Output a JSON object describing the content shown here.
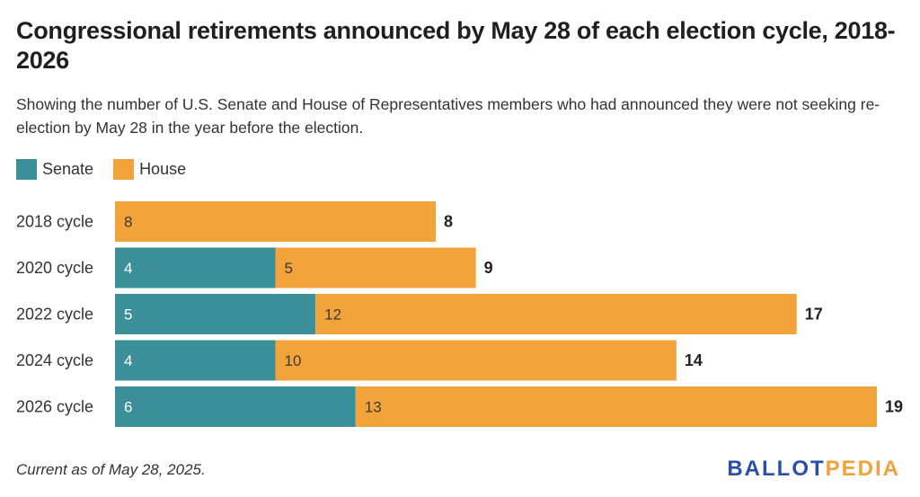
{
  "header": {
    "title": "Congressional retirements announced by May 28 of each election cycle, 2018-2026",
    "subtitle": "Showing the number of U.S. Senate and House of Representatives members who had announced they were not seeking re-election by May 28 in the year before the election."
  },
  "footer": {
    "note": "Current as of May 28, 2025.",
    "logo_part1": "BALLOT",
    "logo_part2": "PEDIA"
  },
  "colors": {
    "senate": "#3a8f99",
    "house": "#f2a33a"
  },
  "chart_data": {
    "type": "bar",
    "orientation": "horizontal",
    "stacked": true,
    "categories": [
      "2018 cycle",
      "2020 cycle",
      "2022 cycle",
      "2024 cycle",
      "2026 cycle"
    ],
    "series": [
      {
        "name": "Senate",
        "values": [
          0,
          4,
          5,
          4,
          6
        ]
      },
      {
        "name": "House",
        "values": [
          8,
          5,
          12,
          10,
          13
        ]
      }
    ],
    "totals": [
      8,
      9,
      17,
      14,
      19
    ],
    "xlim": [
      0,
      19
    ],
    "grid": false,
    "legend_placement": "top-left"
  }
}
